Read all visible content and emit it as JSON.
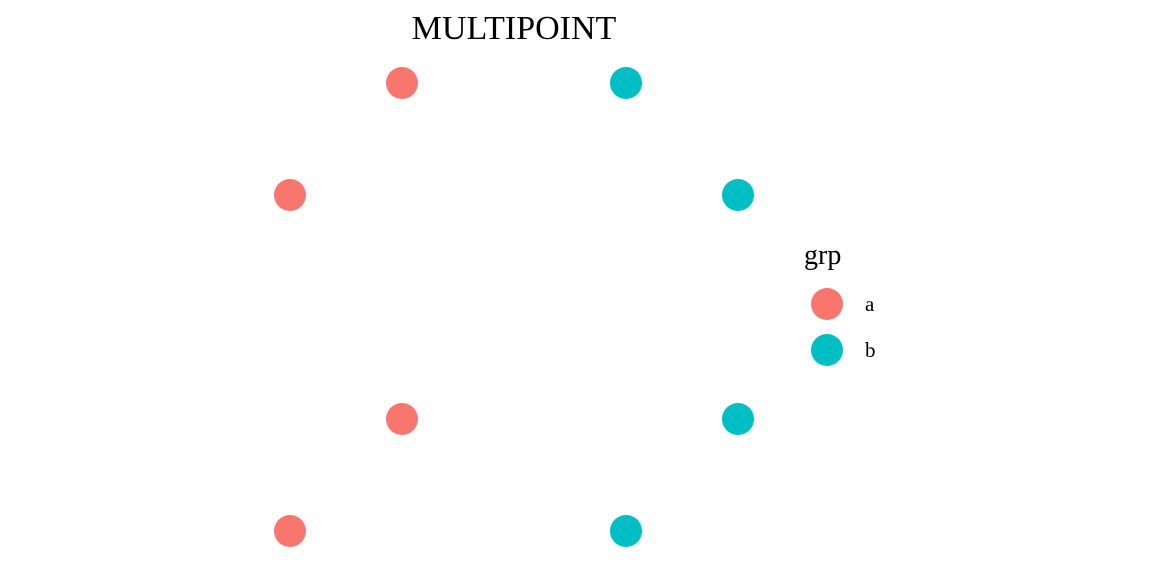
{
  "chart_data": {
    "type": "scatter",
    "title": "MULTIPOINT",
    "xlabel": "",
    "ylabel": "",
    "grid": false,
    "axes_visible": false,
    "xlim": [
      0,
      6
    ],
    "ylim": [
      0,
      6
    ],
    "legend": {
      "title": "grp",
      "placement": "right",
      "entries": [
        {
          "label": "a",
          "color": "#F8766D"
        },
        {
          "label": "b",
          "color": "#00BFC4"
        }
      ]
    },
    "series": [
      {
        "name": "a",
        "color": "#F8766D",
        "points": [
          {
            "x": 1,
            "y": 1
          },
          {
            "x": 2,
            "y": 2
          },
          {
            "x": 1,
            "y": 4
          },
          {
            "x": 2,
            "y": 5
          }
        ]
      },
      {
        "name": "b",
        "color": "#00BFC4",
        "points": [
          {
            "x": 4,
            "y": 1
          },
          {
            "x": 5,
            "y": 2
          },
          {
            "x": 5,
            "y": 4
          },
          {
            "x": 4,
            "y": 5
          }
        ]
      }
    ]
  }
}
